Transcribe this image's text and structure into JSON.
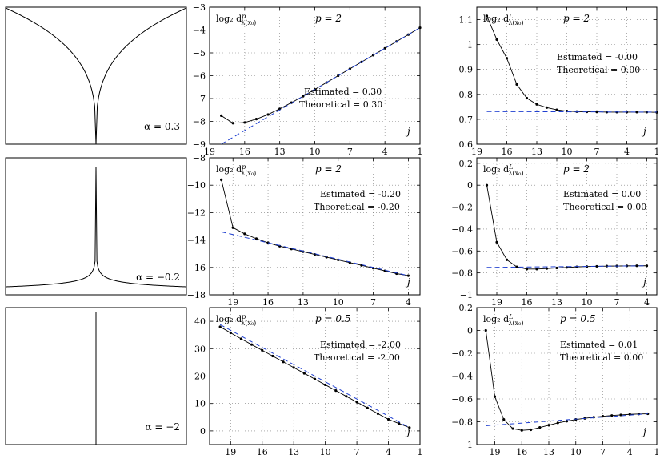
{
  "chart_data": [
    {
      "id": "sig1",
      "type": "line",
      "title": "",
      "xlabel": "",
      "ylabel": "",
      "panel_label": "α = 0.3",
      "shape": "cusp",
      "alpha": 0.3,
      "color": "#000000"
    },
    {
      "id": "p1",
      "type": "line",
      "title": "",
      "xlabel": "",
      "ylabel": "",
      "ylabel_text": "log₂ d^p_λ(x₀)",
      "p_label": "p = 2",
      "estimated_label": "Estimated  = 0.30",
      "theoretical_label": "Theoretical = 0.30",
      "j_label": "j",
      "xlim": [
        19,
        1
      ],
      "ylim": [
        -9,
        -3
      ],
      "xticks": [
        19,
        16,
        13,
        10,
        7,
        4,
        1
      ],
      "yticks": [
        -9,
        -8,
        -7,
        -6,
        -5,
        -4,
        -3
      ],
      "series": [
        {
          "type": "line_points",
          "color": "#000000",
          "x": [
            18,
            17,
            16,
            15,
            14,
            13,
            12,
            11,
            10,
            9,
            8,
            7,
            6,
            5,
            4,
            3,
            2,
            1
          ],
          "y": [
            -7.75,
            -8.08,
            -8.05,
            -7.9,
            -7.7,
            -7.45,
            -7.18,
            -6.9,
            -6.6,
            -6.3,
            -6.0,
            -5.7,
            -5.4,
            -5.1,
            -4.8,
            -4.5,
            -4.2,
            -3.9
          ]
        },
        {
          "type": "dashed_line",
          "color": "#1f3fd0",
          "x": [
            18,
            1
          ],
          "y": [
            -9.0,
            -3.9
          ]
        }
      ]
    },
    {
      "id": "l1",
      "type": "line",
      "title": "",
      "xlabel": "",
      "ylabel": "",
      "ylabel_text": "log₂ d^L_λ(x₀)",
      "p_label": "p = 2",
      "estimated_label": "Estimated  = -0.00",
      "theoretical_label": "Theoretical = 0.00",
      "j_label": "j",
      "xlim": [
        19,
        1
      ],
      "ylim": [
        0.6,
        1.15
      ],
      "xticks": [
        19,
        16,
        13,
        10,
        7,
        4,
        1
      ],
      "yticks": [
        0.6,
        0.7,
        0.8,
        0.9,
        1.0,
        1.1
      ],
      "ytick_labels": [
        "0.6",
        "0.7",
        "0.8",
        "0.9",
        "1",
        "1.1"
      ],
      "series": [
        {
          "type": "line_points",
          "color": "#000000",
          "x": [
            18,
            17,
            16,
            15,
            14,
            13,
            12,
            11,
            10,
            9,
            8,
            7,
            6,
            5,
            4,
            3,
            2,
            1
          ],
          "y": [
            1.115,
            1.02,
            0.945,
            0.84,
            0.785,
            0.76,
            0.747,
            0.738,
            0.733,
            0.731,
            0.73,
            0.73,
            0.729,
            0.729,
            0.729,
            0.729,
            0.729,
            0.728
          ]
        },
        {
          "type": "dashed_line",
          "color": "#1f3fd0",
          "x": [
            18,
            1
          ],
          "y": [
            0.731,
            0.729
          ]
        }
      ]
    },
    {
      "id": "sig2",
      "type": "line",
      "title": "",
      "xlabel": "",
      "ylabel": "",
      "panel_label": "α = −0.2",
      "shape": "spike",
      "alpha": -0.2,
      "color": "#000000"
    },
    {
      "id": "p2",
      "type": "line",
      "title": "",
      "xlabel": "",
      "ylabel": "",
      "ylabel_text": "log₂ d^p_λ(x₀)",
      "p_label": "p = 2",
      "estimated_label": "Estimated   = -0.20",
      "theoretical_label": "Theoretical = -0.20",
      "j_label": "j",
      "xlim": [
        21,
        3
      ],
      "ylim": [
        -18,
        -8
      ],
      "xticks": [
        19,
        16,
        13,
        10,
        7,
        4
      ],
      "yticks": [
        -18,
        -16,
        -14,
        -12,
        -10,
        -8
      ],
      "series": [
        {
          "type": "line_points",
          "color": "#000000",
          "x": [
            20,
            19,
            18,
            17,
            16,
            15,
            14,
            13,
            12,
            11,
            10,
            9,
            8,
            7,
            6,
            5,
            4
          ],
          "y": [
            -9.6,
            -13.1,
            -13.55,
            -13.9,
            -14.2,
            -14.45,
            -14.65,
            -14.85,
            -15.05,
            -15.25,
            -15.45,
            -15.65,
            -15.85,
            -16.05,
            -16.25,
            -16.45,
            -16.6
          ]
        },
        {
          "type": "dashed_line",
          "color": "#1f3fd0",
          "x": [
            20,
            4
          ],
          "y": [
            -13.4,
            -16.6
          ]
        }
      ]
    },
    {
      "id": "l2",
      "type": "line",
      "title": "",
      "xlabel": "",
      "ylabel": "",
      "ylabel_text": "log₂ d^L_λ(x₀)",
      "p_label": "p = 2",
      "estimated_label": "Estimated   = 0.00",
      "theoretical_label": "Theoretical = 0.00",
      "j_label": "j",
      "xlim": [
        21,
        3
      ],
      "ylim": [
        -1,
        0.25
      ],
      "xticks": [
        19,
        16,
        13,
        10,
        7,
        4
      ],
      "yticks": [
        -1,
        -0.8,
        -0.6,
        -0.4,
        -0.2,
        0,
        0.2
      ],
      "ytick_labels": [
        "−1",
        "−0.8",
        "−0.6",
        "−0.4",
        "−0.2",
        "0",
        "0.2"
      ],
      "series": [
        {
          "type": "line_points",
          "color": "#000000",
          "x": [
            20,
            19,
            18,
            17,
            16,
            15,
            14,
            13,
            12,
            11,
            10,
            9,
            8,
            7,
            6,
            5,
            4
          ],
          "y": [
            0.0,
            -0.52,
            -0.68,
            -0.745,
            -0.765,
            -0.765,
            -0.76,
            -0.755,
            -0.75,
            -0.745,
            -0.742,
            -0.74,
            -0.738,
            -0.737,
            -0.736,
            -0.735,
            -0.735
          ]
        },
        {
          "type": "dashed_line",
          "color": "#1f3fd0",
          "x": [
            20,
            4
          ],
          "y": [
            -0.75,
            -0.735
          ]
        }
      ]
    },
    {
      "id": "sig3",
      "type": "line",
      "title": "",
      "xlabel": "",
      "ylabel": "",
      "panel_label": "α = −2",
      "shape": "dirac",
      "alpha": -2,
      "color": "#000000"
    },
    {
      "id": "p3",
      "type": "line",
      "title": "",
      "xlabel": "",
      "ylabel": "",
      "ylabel_text": "log₂ d^p_λ(x₀)",
      "p_label": "p = 0.5",
      "estimated_label": "Estimated   = -2.00",
      "theoretical_label": "Theoretical = -2.00",
      "j_label": "j",
      "xlim": [
        21,
        1
      ],
      "ylim": [
        -5,
        45
      ],
      "xticks": [
        19,
        16,
        13,
        10,
        7,
        4,
        1
      ],
      "yticks": [
        0,
        10,
        20,
        30,
        40
      ],
      "series": [
        {
          "type": "line_points",
          "color": "#000000",
          "x": [
            20,
            19,
            18,
            17,
            16,
            15,
            14,
            13,
            12,
            11,
            10,
            9,
            8,
            7,
            6,
            5,
            4,
            3,
            2
          ],
          "y": [
            38.0,
            35.8,
            33.6,
            31.5,
            29.4,
            27.3,
            25.2,
            23.1,
            21.0,
            18.9,
            16.8,
            14.7,
            12.6,
            10.5,
            8.4,
            6.3,
            4.2,
            2.7,
            1.2
          ]
        },
        {
          "type": "dashed_line",
          "color": "#1f3fd0",
          "x": [
            20,
            2
          ],
          "y": [
            38.8,
            1.2
          ]
        }
      ]
    },
    {
      "id": "l3",
      "type": "line",
      "title": "",
      "xlabel": "",
      "ylabel": "",
      "ylabel_text": "log₂ d^L_λ(x₀)",
      "p_label": "p = 0.5",
      "estimated_label": "Estimated   = 0.01",
      "theoretical_label": "Theoretical = 0.00",
      "j_label": "j",
      "xlim": [
        21,
        1
      ],
      "ylim": [
        -1,
        0.2
      ],
      "xticks": [
        19,
        16,
        13,
        10,
        7,
        4,
        1
      ],
      "yticks": [
        -1,
        -0.8,
        -0.6,
        -0.4,
        -0.2,
        0,
        0.2
      ],
      "ytick_labels": [
        "−1",
        "−0.8",
        "−0.6",
        "−0.4",
        "−0.2",
        "0",
        "0.2"
      ],
      "series": [
        {
          "type": "line_points",
          "color": "#000000",
          "x": [
            20,
            19,
            18,
            17,
            16,
            15,
            14,
            13,
            12,
            11,
            10,
            9,
            8,
            7,
            6,
            5,
            4,
            3,
            2
          ],
          "y": [
            0.0,
            -0.58,
            -0.78,
            -0.86,
            -0.875,
            -0.87,
            -0.85,
            -0.83,
            -0.81,
            -0.795,
            -0.78,
            -0.77,
            -0.76,
            -0.752,
            -0.745,
            -0.74,
            -0.735,
            -0.732,
            -0.73
          ]
        },
        {
          "type": "dashed_line",
          "color": "#1f3fd0",
          "x": [
            20,
            2
          ],
          "y": [
            -0.835,
            -0.73
          ]
        }
      ]
    }
  ]
}
